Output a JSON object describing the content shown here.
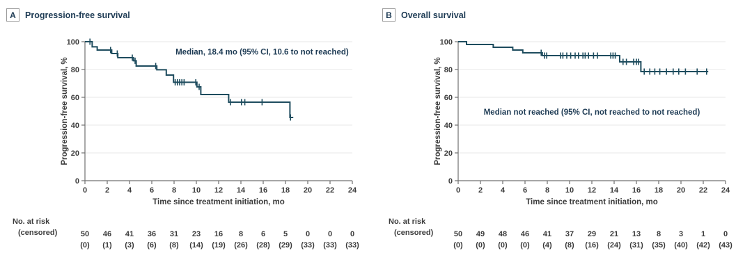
{
  "figure": {
    "panels": [
      {
        "label": "A",
        "title": "Progression-free survival"
      },
      {
        "label": "B",
        "title": "Overall survival"
      }
    ]
  },
  "colors": {
    "curve": "#1e4c5e",
    "heading_ink": "#1f3c55",
    "axis_text": "#3b3b3b",
    "grid": "#e7e7e7",
    "spine": "#707070",
    "background": "#ffffff",
    "panel_box_border": "#9b9b9b"
  },
  "chart_data": [
    {
      "type": "line",
      "subtype": "kaplan-meier-step",
      "panel_label": "A",
      "title": "Progression-free survival",
      "xlabel": "Time since treatment initiation, mo",
      "ylabel": "Progression-free survival, %",
      "xlim": [
        0,
        24
      ],
      "ylim": [
        0,
        100
      ],
      "xticks": [
        0,
        2,
        4,
        6,
        8,
        10,
        12,
        14,
        16,
        18,
        20,
        22,
        24
      ],
      "yticks": [
        0,
        20,
        40,
        60,
        80,
        100
      ],
      "gridlines_y": [
        20,
        40,
        60,
        80,
        100
      ],
      "grid": true,
      "legend": "none",
      "annotation": "Median, 18.4 mo (95% CI, 10.6 to not reached)",
      "annotation_xy_data": [
        15.9,
        90.75
      ],
      "series": [
        {
          "name": "Progression-free survival",
          "start": [
            0,
            100
          ],
          "drops": [
            [
              0.65,
              96.3
            ],
            [
              1.1,
              94
            ],
            [
              2.4,
              91.5
            ],
            [
              2.95,
              88.5
            ],
            [
              4.35,
              86.3
            ],
            [
              4.6,
              82.5
            ],
            [
              6.45,
              79.8
            ],
            [
              7.3,
              76
            ],
            [
              7.95,
              70.8
            ],
            [
              10.05,
              67.5
            ],
            [
              10.4,
              62
            ],
            [
              12.9,
              56.5
            ],
            [
              18.4,
              45.5
            ]
          ],
          "end_time": 18.7,
          "censors": [
            [
              0.45,
              100
            ],
            [
              2.3,
              94
            ],
            [
              2.9,
              91.5
            ],
            [
              4.25,
              88.5
            ],
            [
              4.5,
              86.3
            ],
            [
              6.35,
              82.5
            ],
            [
              8.1,
              70.8
            ],
            [
              8.3,
              70.8
            ],
            [
              8.5,
              70.8
            ],
            [
              8.7,
              70.8
            ],
            [
              8.9,
              70.8
            ],
            [
              9.95,
              70.8
            ],
            [
              10.25,
              67.5
            ],
            [
              13.05,
              56.5
            ],
            [
              14.05,
              56.5
            ],
            [
              14.35,
              56.5
            ],
            [
              15.9,
              56.5
            ],
            [
              18.45,
              45.5
            ]
          ]
        }
      ],
      "at_risk": {
        "label_line1": "No. at risk",
        "label_line2": "(censored)",
        "times": [
          0,
          2,
          4,
          6,
          8,
          10,
          12,
          14,
          16,
          18,
          20,
          22,
          24
        ],
        "n_at_risk": [
          "50",
          "46",
          "41",
          "36",
          "31",
          "23",
          "16",
          "8",
          "6",
          "5",
          "0",
          "0",
          "0"
        ],
        "n_censored": [
          "(0)",
          "(1)",
          "(3)",
          "(6)",
          "(8)",
          "(14)",
          "(19)",
          "(26)",
          "(28)",
          "(29)",
          "(33)",
          "(33)",
          "(33)"
        ]
      }
    },
    {
      "type": "line",
      "subtype": "kaplan-meier-step",
      "panel_label": "B",
      "title": "Overall survival",
      "xlabel": "Time since treatment initiation, mo",
      "ylabel": "Progression-free survival, %",
      "xlim": [
        0,
        24
      ],
      "ylim": [
        0,
        100
      ],
      "xticks": [
        0,
        2,
        4,
        6,
        8,
        10,
        12,
        14,
        16,
        18,
        20,
        22,
        24
      ],
      "yticks": [
        0,
        20,
        40,
        60,
        80,
        100
      ],
      "gridlines_y": [
        20,
        40,
        60,
        80,
        100
      ],
      "grid": true,
      "legend": "none",
      "annotation": "Median not reached (95% CI, not reached to not reached)",
      "annotation_xy_data": [
        12,
        47.5
      ],
      "series": [
        {
          "name": "Overall survival",
          "start": [
            0,
            100
          ],
          "drops": [
            [
              0.75,
              98
            ],
            [
              3.15,
              96
            ],
            [
              4.9,
              94
            ],
            [
              5.8,
              92
            ],
            [
              7.55,
              90
            ],
            [
              14.5,
              85.5
            ],
            [
              16.4,
              78.5
            ]
          ],
          "end_time": 22.45,
          "censors": [
            [
              7.45,
              92
            ],
            [
              7.75,
              90
            ],
            [
              7.95,
              90
            ],
            [
              9.2,
              90
            ],
            [
              9.4,
              90
            ],
            [
              9.75,
              90
            ],
            [
              10.1,
              90
            ],
            [
              10.5,
              90
            ],
            [
              10.8,
              90
            ],
            [
              11.2,
              90
            ],
            [
              11.4,
              90
            ],
            [
              11.7,
              90
            ],
            [
              12.15,
              90
            ],
            [
              12.5,
              90
            ],
            [
              13.7,
              90
            ],
            [
              13.9,
              90
            ],
            [
              14.1,
              90
            ],
            [
              14.8,
              85.5
            ],
            [
              15.1,
              85.5
            ],
            [
              15.75,
              85.5
            ],
            [
              16.0,
              85.5
            ],
            [
              16.2,
              85.5
            ],
            [
              16.7,
              78.5
            ],
            [
              17.2,
              78.5
            ],
            [
              17.65,
              78.5
            ],
            [
              18.1,
              78.5
            ],
            [
              18.7,
              78.5
            ],
            [
              19.3,
              78.5
            ],
            [
              19.8,
              78.5
            ],
            [
              20.4,
              78.5
            ],
            [
              21.45,
              78.5
            ],
            [
              22.3,
              78.5
            ]
          ]
        }
      ],
      "at_risk": {
        "label_line1": "No. at risk",
        "label_line2": "(censored)",
        "times": [
          0,
          2,
          4,
          6,
          8,
          10,
          12,
          14,
          16,
          18,
          20,
          22,
          24
        ],
        "n_at_risk": [
          "50",
          "49",
          "48",
          "46",
          "41",
          "37",
          "29",
          "21",
          "13",
          "8",
          "3",
          "1",
          "0"
        ],
        "n_censored": [
          "(0)",
          "(0)",
          "(0)",
          "(0)",
          "(4)",
          "(8)",
          "(16)",
          "(24)",
          "(31)",
          "(35)",
          "(40)",
          "(42)",
          "(43)"
        ]
      }
    }
  ]
}
